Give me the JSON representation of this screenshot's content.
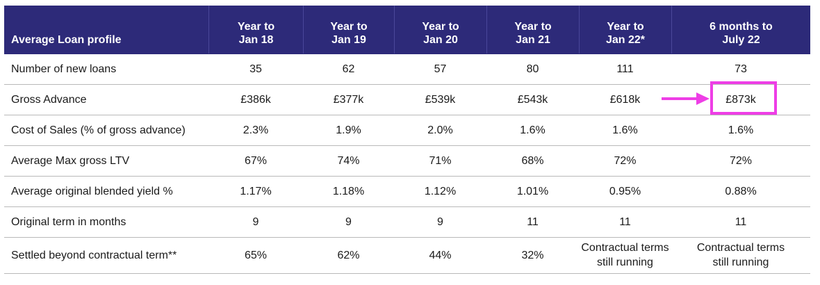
{
  "table": {
    "headers": [
      "Average Loan profile",
      "Year to\nJan 18",
      "Year to\nJan 19",
      "Year to\nJan 20",
      "Year to\nJan 21",
      "Year to\nJan 22*",
      "6 months to\nJuly 22"
    ],
    "rows": [
      {
        "label": "Number of new loans",
        "values": [
          "35",
          "62",
          "57",
          "80",
          "111",
          "73"
        ]
      },
      {
        "label": "Gross Advance",
        "values": [
          "£386k",
          "£377k",
          "£539k",
          "£543k",
          "£618k",
          "£873k"
        ]
      },
      {
        "label": "Cost of Sales (% of gross advance)",
        "values": [
          "2.3%",
          "1.9%",
          "2.0%",
          "1.6%",
          "1.6%",
          "1.6%"
        ]
      },
      {
        "label": "Average Max gross LTV",
        "values": [
          "67%",
          "74%",
          "71%",
          "68%",
          "72%",
          "72%"
        ]
      },
      {
        "label": "Average original blended yield %",
        "values": [
          "1.17%",
          "1.18%",
          "1.12%",
          "1.01%",
          "0.95%",
          "0.88%"
        ]
      },
      {
        "label": "Original term in months",
        "values": [
          "9",
          "9",
          "9",
          "11",
          "11",
          "11"
        ]
      },
      {
        "label": "Settled beyond contractual term**",
        "values": [
          "65%",
          "62%",
          "44%",
          "32%",
          "Contractual terms\nstill running",
          "Contractual terms\nstill running"
        ]
      }
    ]
  },
  "colors": {
    "header_bg": "#2d2a79",
    "highlight": "#ee3ee6"
  },
  "annotation": {
    "icon": "right-arrow-icon",
    "highlighted_cell": "£873k"
  }
}
